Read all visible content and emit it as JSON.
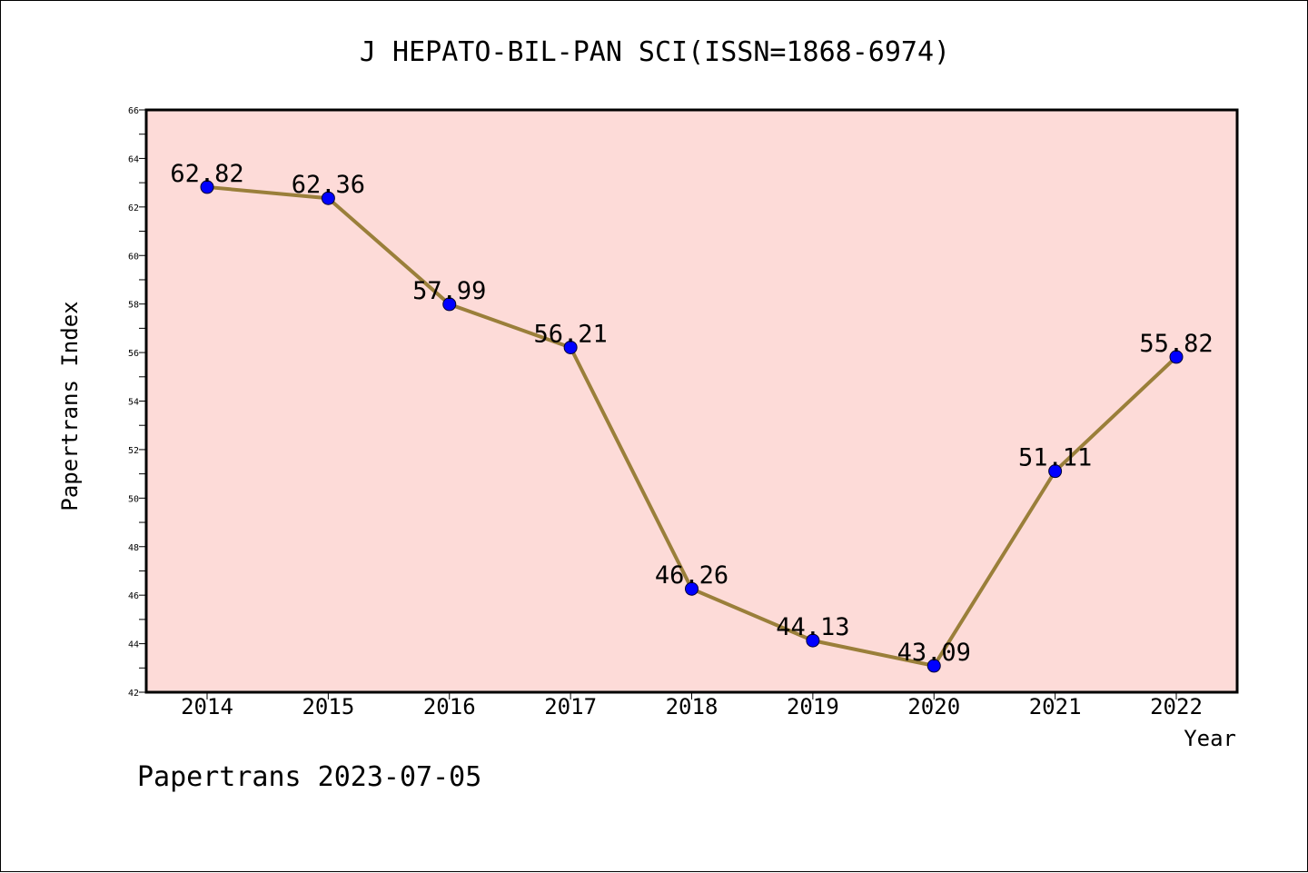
{
  "chart_data": {
    "type": "line",
    "title": "J HEPATO-BIL-PAN SCI(ISSN=1868-6974)",
    "xlabel": "Year",
    "ylabel": "Papertrans Index",
    "categories": [
      "2014",
      "2015",
      "2016",
      "2017",
      "2018",
      "2019",
      "2020",
      "2021",
      "2022"
    ],
    "series": [
      {
        "values": [
          62.82,
          62.36,
          57.99,
          56.21,
          46.26,
          44.13,
          43.09,
          51.11,
          55.82
        ],
        "labels": [
          "62.82",
          "62.36",
          "57.99",
          "56.21",
          "46.26",
          "44.13",
          "43.09",
          "51.11",
          "55.82"
        ]
      }
    ],
    "ylim": [
      42,
      66
    ],
    "yticks": [
      "42",
      "44",
      "46",
      "48",
      "50",
      "52",
      "54",
      "56",
      "58",
      "60",
      "62",
      "64",
      "66"
    ],
    "grid": false,
    "legend": "none",
    "colors": {
      "plot_background": "#fddbd8",
      "line": "#9a7f3a",
      "marker": "#0000ff",
      "axes": "#000000"
    }
  },
  "footer": {
    "text": "Papertrans 2023-07-05"
  }
}
